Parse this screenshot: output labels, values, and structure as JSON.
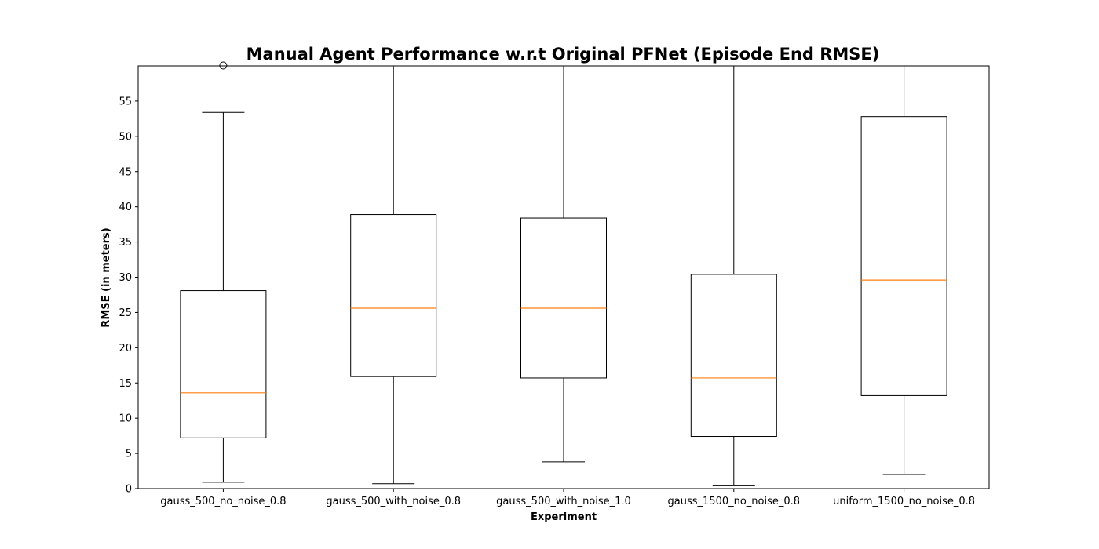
{
  "chart_data": {
    "type": "box",
    "title": "Manual Agent Performance w.r.t Original PFNet (Episode End RMSE)",
    "xlabel": "Experiment",
    "ylabel": "RMSE (in meters)",
    "ylim": [
      0,
      60
    ],
    "yticks": [
      0,
      5,
      10,
      15,
      20,
      25,
      30,
      35,
      40,
      45,
      50,
      55
    ],
    "grid": false,
    "categories": [
      "gauss_500_no_noise_0.8",
      "gauss_500_with_noise_0.8",
      "gauss_500_with_noise_1.0",
      "gauss_1500_no_noise_0.8",
      "uniform_1500_no_noise_0.8"
    ],
    "boxes": [
      {
        "whisker_low": 0.9,
        "q1": 7.2,
        "median": 13.6,
        "q3": 28.1,
        "whisker_high": 53.4,
        "outliers": [
          60
        ]
      },
      {
        "whisker_low": 0.7,
        "q1": 15.9,
        "median": 25.6,
        "q3": 38.9,
        "whisker_high": 60,
        "outliers": []
      },
      {
        "whisker_low": 3.8,
        "q1": 15.7,
        "median": 25.6,
        "q3": 38.4,
        "whisker_high": 60,
        "outliers": []
      },
      {
        "whisker_low": 0.4,
        "q1": 7.4,
        "median": 15.7,
        "q3": 30.4,
        "whisker_high": 60,
        "outliers": []
      },
      {
        "whisker_low": 2.0,
        "q1": 13.2,
        "median": 29.6,
        "q3": 52.8,
        "whisker_high": 60,
        "outliers": []
      }
    ],
    "colors": {
      "box": "#000000",
      "median": "#ff7f0e"
    }
  }
}
